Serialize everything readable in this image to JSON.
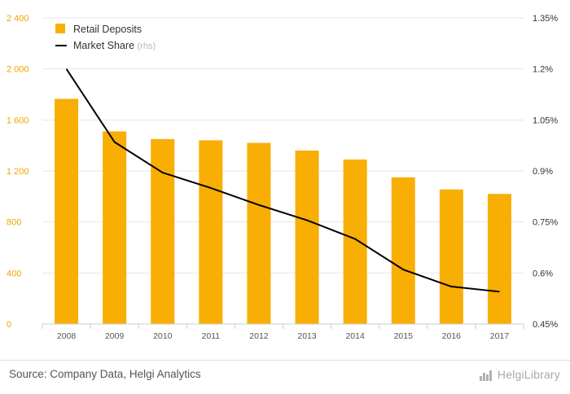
{
  "chart_data": {
    "type": "bar",
    "categories": [
      "2008",
      "2009",
      "2010",
      "2011",
      "2012",
      "2013",
      "2014",
      "2015",
      "2016",
      "2017"
    ],
    "series": [
      {
        "name": "Retail Deposits",
        "type": "bar",
        "axis": "left",
        "values": [
          1765,
          1510,
          1450,
          1440,
          1420,
          1360,
          1290,
          1150,
          1055,
          1020
        ],
        "color": "#f8ae02"
      },
      {
        "name": "Market Share",
        "type": "line",
        "axis": "right",
        "values": [
          1.2,
          0.985,
          0.895,
          0.85,
          0.8,
          0.755,
          0.7,
          0.61,
          0.56,
          0.545
        ],
        "color": "#000000"
      }
    ],
    "y_left": {
      "lim": [
        0,
        2400
      ],
      "ticks": [
        0,
        400,
        800,
        1200,
        1600,
        2000,
        2400
      ],
      "tick_labels": [
        "0",
        "400",
        "800",
        "1 200",
        "1 600",
        "2 000",
        "2 400"
      ],
      "color": "#f0a500"
    },
    "y_right": {
      "lim": [
        0.45,
        1.35
      ],
      "ticks": [
        0.45,
        0.6,
        0.75,
        0.9,
        1.05,
        1.2,
        1.35
      ],
      "tick_labels": [
        "0.45%",
        "0.6%",
        "0.75%",
        "0.9%",
        "1.05%",
        "1.2%",
        "1.35%"
      ]
    },
    "grid": "horizontal",
    "legend": {
      "position": "top-left",
      "items": [
        {
          "label": "Retail Deposits",
          "symbol": "square",
          "color": "#f8ae02"
        },
        {
          "label": "Market Share",
          "suffix": "(rhs)",
          "symbol": "line",
          "color": "#000000"
        }
      ]
    }
  },
  "footer": {
    "source": "Source: Company Data, Helgi Analytics",
    "brand": "HelgiLibrary",
    "brand_icon": "helgi-logo-icon"
  }
}
